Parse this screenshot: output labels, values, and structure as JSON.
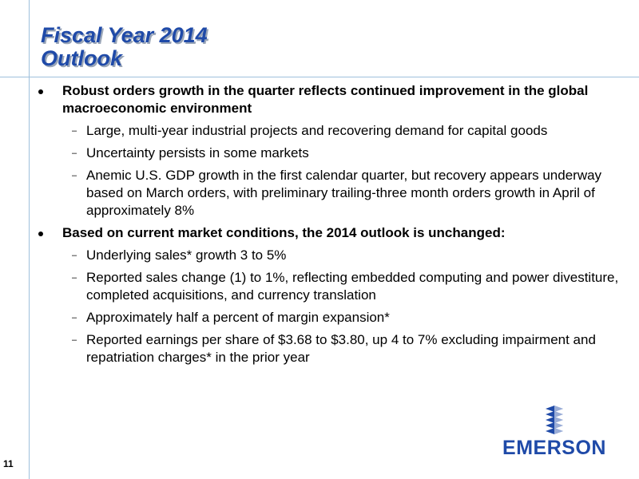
{
  "slide": {
    "title_line1": "Fiscal Year 2014",
    "title_line2": "Outlook",
    "page_number": "11",
    "logo_text": "EMERSON",
    "colors": {
      "title": "#1f4aa8",
      "guide_lines": "#9ec0dc",
      "logo": "#1f4aa8"
    }
  },
  "bullets": [
    {
      "text": "Robust orders growth in the quarter reflects continued improvement in the global macroeconomic environment",
      "subs": [
        "Large, multi-year industrial projects and recovering demand for capital goods",
        "Uncertainty persists in some markets",
        "Anemic U.S. GDP growth in the first calendar quarter, but recovery appears underway based on March orders, with preliminary trailing-three month orders growth in April of approximately 8%"
      ]
    },
    {
      "text": "Based on current market conditions, the 2014 outlook is unchanged:",
      "subs": [
        "Underlying sales* growth 3 to 5%",
        "Reported sales change (1) to 1%, reflecting embedded computing and power divestiture, completed acquisitions, and currency translation",
        "Approximately half a percent of margin expansion*",
        "Reported earnings per share of $3.68 to $3.80, up 4 to 7% excluding impairment and repatriation charges* in the prior year"
      ]
    }
  ]
}
